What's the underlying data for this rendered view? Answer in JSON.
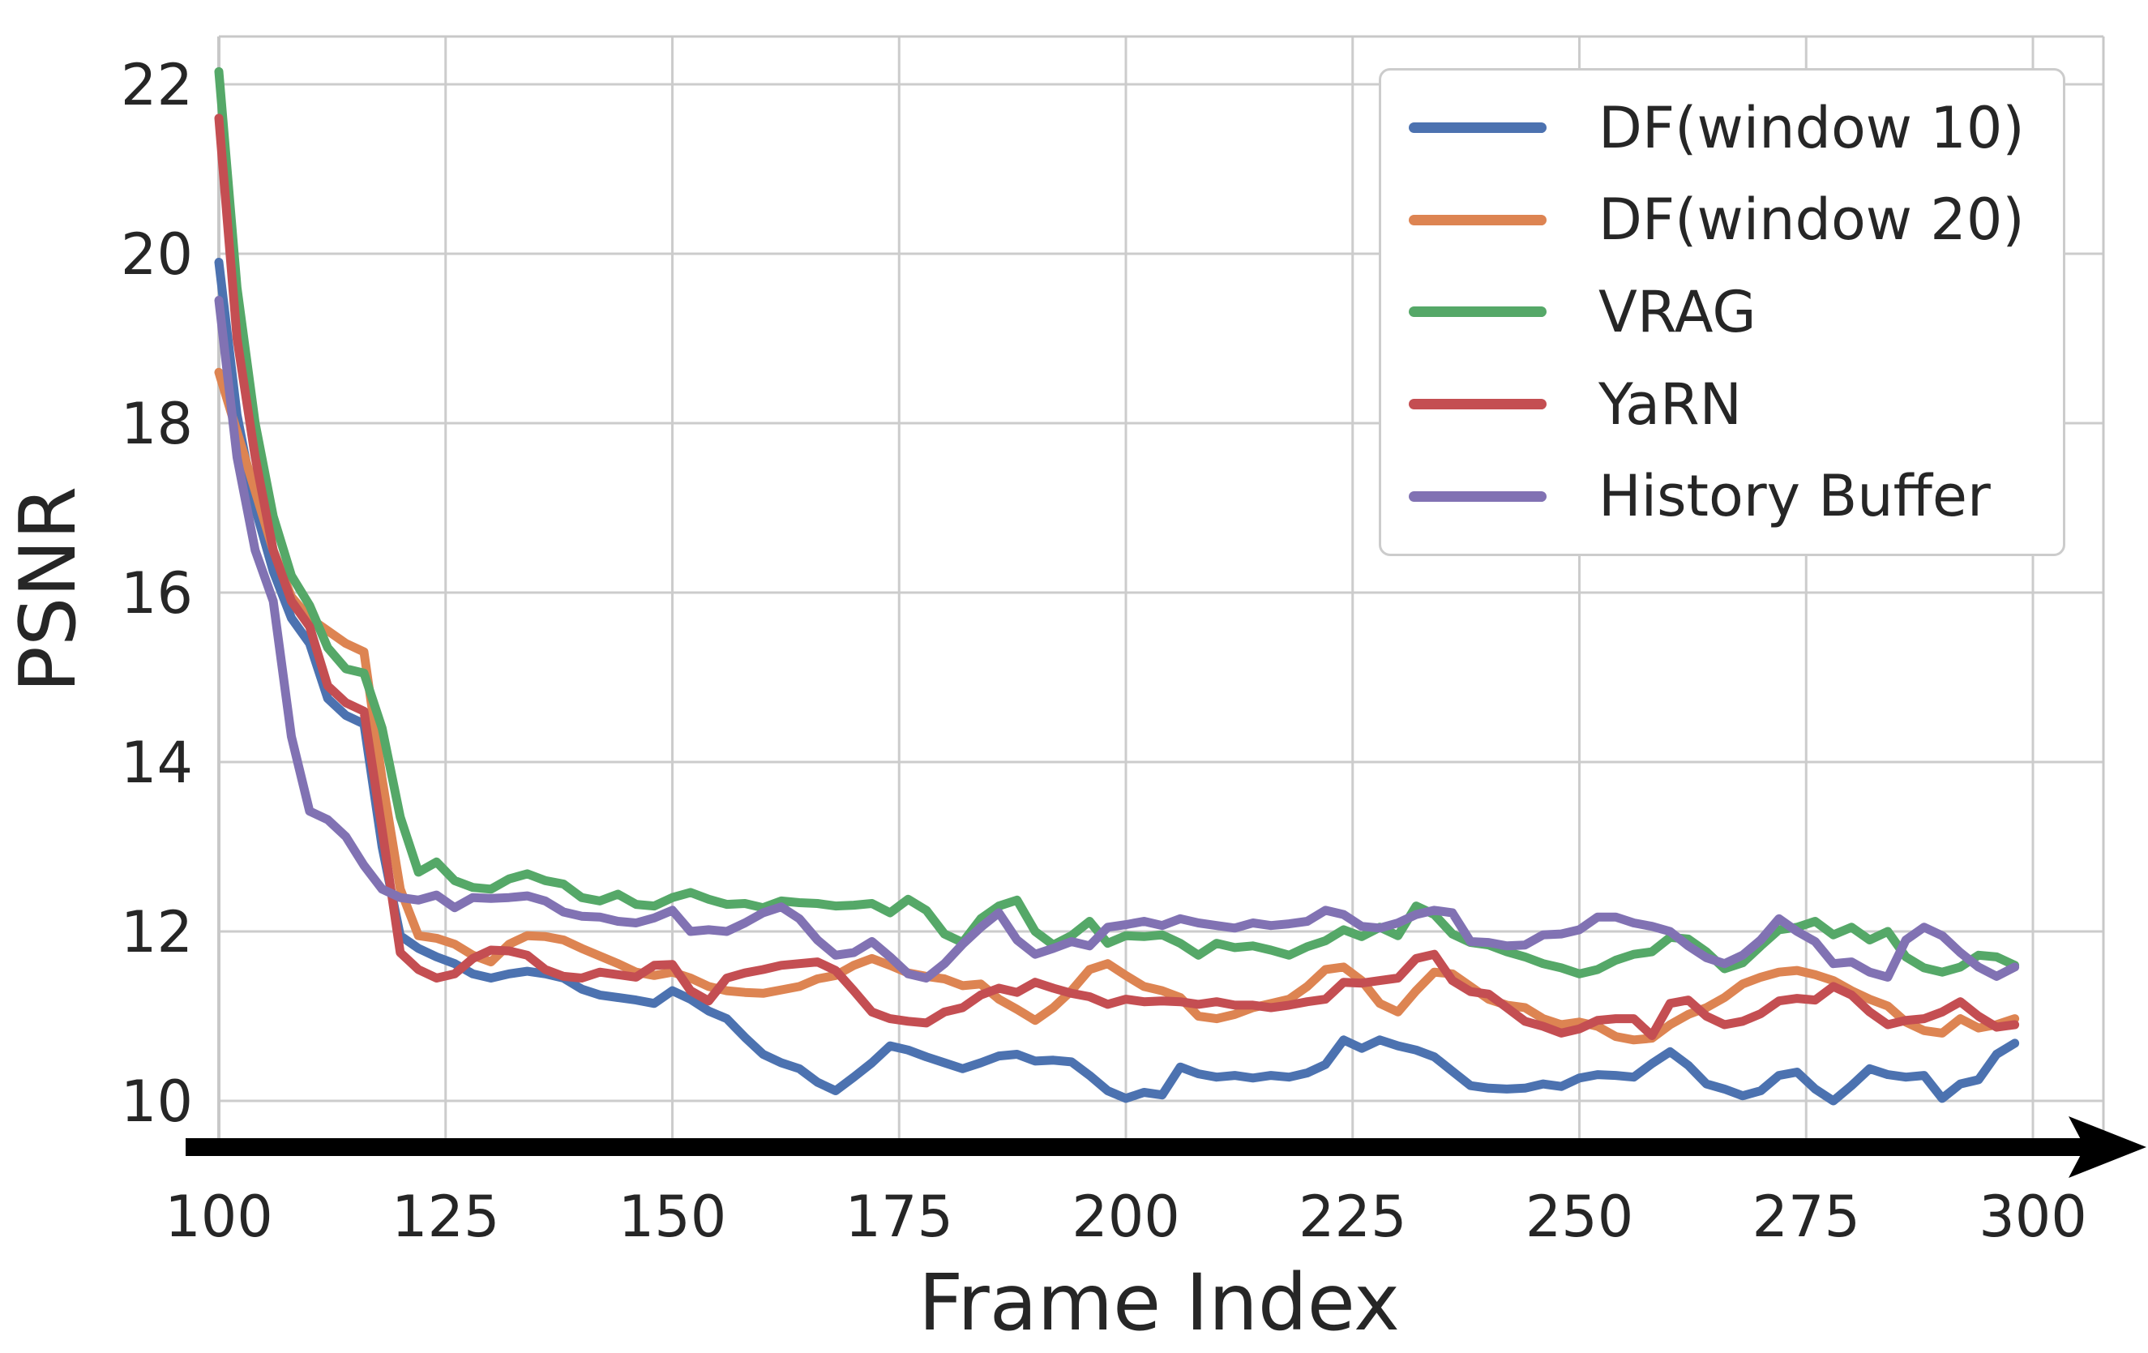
{
  "figure": {
    "background": "#ffffff"
  },
  "colors": {
    "grid": "#cccccc",
    "spine": "#c8c8c8",
    "text": "#262626",
    "axis_arrow": "#000000"
  },
  "legend": {
    "position": "upper right",
    "items": [
      "DF(window 10)",
      "DF(window 20)",
      "VRAG",
      "YaRN",
      "History Buffer"
    ]
  },
  "chart_data": {
    "type": "line",
    "title": "",
    "xlabel": "Frame Index",
    "ylabel": "PSNR",
    "x_ticks": [
      100,
      125,
      150,
      175,
      200,
      225,
      250,
      275,
      300
    ],
    "y_ticks": [
      10,
      12,
      14,
      16,
      18,
      20,
      22
    ],
    "xlim": [
      100,
      308
    ],
    "ylim": [
      9.45,
      22.55
    ],
    "grid": true,
    "legend_position": "upper right",
    "x_start": 100,
    "x_step": 2,
    "series": [
      {
        "name": "DF(window 10)",
        "color": "#4C72B0",
        "values": [
          19.9,
          18.1,
          17.0,
          16.25,
          15.7,
          15.4,
          14.75,
          14.55,
          14.45,
          13.0,
          11.95,
          11.8,
          11.7,
          11.62,
          11.5,
          11.45,
          11.5,
          11.53,
          11.5,
          11.45,
          11.32,
          11.25,
          11.22,
          11.19,
          11.15,
          11.3,
          11.2,
          11.06,
          10.97,
          10.75,
          10.55,
          10.45,
          10.38,
          10.22,
          10.12,
          10.28,
          10.45,
          10.65,
          10.6,
          10.52,
          10.45,
          10.38,
          10.45,
          10.53,
          10.55,
          10.47,
          10.48,
          10.46,
          10.3,
          10.12,
          10.03,
          10.1,
          10.07,
          10.4,
          10.32,
          10.28,
          10.3,
          10.27,
          10.3,
          10.28,
          10.33,
          10.43,
          10.72,
          10.62,
          10.72,
          10.65,
          10.6,
          10.52,
          10.35,
          10.18,
          10.15,
          10.14,
          10.15,
          10.2,
          10.17,
          10.27,
          10.31,
          10.3,
          10.28,
          10.44,
          10.58,
          10.42,
          10.2,
          10.14,
          10.06,
          10.12,
          10.3,
          10.34,
          10.14,
          10.0,
          10.18,
          10.38,
          10.31,
          10.28,
          10.3,
          10.03,
          10.2,
          10.25,
          10.55,
          10.68
        ]
      },
      {
        "name": "DF(window 20)",
        "color": "#DD8452",
        "values": [
          18.6,
          17.9,
          17.2,
          16.5,
          15.95,
          15.7,
          15.55,
          15.4,
          15.3,
          13.8,
          12.5,
          11.95,
          11.92,
          11.85,
          11.72,
          11.64,
          11.85,
          11.95,
          11.94,
          11.9,
          11.8,
          11.71,
          11.62,
          11.52,
          11.48,
          11.52,
          11.45,
          11.35,
          11.3,
          11.28,
          11.27,
          11.31,
          11.35,
          11.44,
          11.48,
          11.6,
          11.68,
          11.6,
          11.51,
          11.47,
          11.44,
          11.36,
          11.38,
          11.2,
          11.08,
          10.95,
          11.1,
          11.3,
          11.55,
          11.62,
          11.48,
          11.35,
          11.3,
          11.22,
          11.0,
          10.97,
          11.02,
          11.1,
          11.15,
          11.2,
          11.35,
          11.55,
          11.58,
          11.42,
          11.15,
          11.05,
          11.3,
          11.52,
          11.5,
          11.35,
          11.2,
          11.13,
          11.1,
          10.97,
          10.9,
          10.93,
          10.88,
          10.76,
          10.72,
          10.74,
          10.9,
          11.02,
          11.1,
          11.22,
          11.38,
          11.46,
          11.52,
          11.54,
          11.49,
          11.42,
          11.3,
          11.2,
          11.12,
          10.93,
          10.83,
          10.8,
          10.97,
          10.86,
          10.9,
          10.97
        ]
      },
      {
        "name": "VRAG",
        "color": "#55A868",
        "values": [
          22.15,
          19.6,
          18.0,
          16.9,
          16.2,
          15.85,
          15.35,
          15.1,
          15.05,
          14.4,
          13.35,
          12.7,
          12.82,
          12.6,
          12.52,
          12.5,
          12.62,
          12.68,
          12.6,
          12.56,
          12.4,
          12.36,
          12.44,
          12.32,
          12.3,
          12.4,
          12.46,
          12.38,
          12.32,
          12.33,
          12.28,
          12.36,
          12.34,
          12.33,
          12.3,
          12.31,
          12.33,
          12.22,
          12.38,
          12.25,
          11.97,
          11.87,
          12.15,
          12.3,
          12.37,
          12.0,
          11.84,
          11.95,
          12.12,
          11.86,
          11.95,
          11.94,
          11.96,
          11.86,
          11.72,
          11.86,
          11.81,
          11.83,
          11.78,
          11.72,
          11.82,
          11.89,
          12.02,
          11.94,
          12.05,
          11.95,
          12.3,
          12.2,
          11.97,
          11.87,
          11.84,
          11.76,
          11.7,
          11.62,
          11.57,
          11.5,
          11.55,
          11.66,
          11.73,
          11.76,
          11.93,
          11.91,
          11.76,
          11.56,
          11.63,
          11.83,
          12.02,
          12.05,
          12.12,
          11.96,
          12.05,
          11.9,
          12.0,
          11.7,
          11.57,
          11.52,
          11.58,
          11.72,
          11.7,
          11.6
        ]
      },
      {
        "name": "YaRN",
        "color": "#C44E52",
        "values": [
          21.6,
          19.0,
          17.6,
          16.5,
          15.9,
          15.6,
          14.9,
          14.7,
          14.6,
          13.2,
          11.75,
          11.55,
          11.45,
          11.5,
          11.68,
          11.78,
          11.77,
          11.72,
          11.55,
          11.47,
          11.45,
          11.52,
          11.49,
          11.46,
          11.6,
          11.61,
          11.3,
          11.18,
          11.45,
          11.51,
          11.55,
          11.6,
          11.62,
          11.64,
          11.54,
          11.3,
          11.05,
          10.97,
          10.94,
          10.92,
          11.05,
          11.1,
          11.25,
          11.33,
          11.28,
          11.4,
          11.33,
          11.27,
          11.23,
          11.14,
          11.2,
          11.17,
          11.18,
          11.17,
          11.14,
          11.17,
          11.13,
          11.13,
          11.1,
          11.13,
          11.17,
          11.2,
          11.4,
          11.39,
          11.42,
          11.45,
          11.68,
          11.73,
          11.42,
          11.29,
          11.26,
          11.1,
          10.94,
          10.88,
          10.8,
          10.85,
          10.95,
          10.97,
          10.97,
          10.77,
          11.15,
          11.19,
          11.0,
          10.9,
          10.94,
          11.03,
          11.18,
          11.21,
          11.19,
          11.35,
          11.25,
          11.05,
          10.9,
          10.95,
          10.97,
          11.05,
          11.17,
          11.0,
          10.87,
          10.9
        ]
      },
      {
        "name": "History Buffer",
        "color": "#8172B3",
        "values": [
          19.45,
          17.6,
          16.5,
          15.9,
          14.3,
          13.42,
          13.32,
          13.12,
          12.78,
          12.5,
          12.4,
          12.37,
          12.43,
          12.28,
          12.4,
          12.39,
          12.4,
          12.42,
          12.36,
          12.23,
          12.18,
          12.17,
          12.12,
          12.1,
          12.16,
          12.25,
          12.0,
          12.02,
          12.0,
          12.1,
          12.22,
          12.29,
          12.15,
          11.9,
          11.72,
          11.75,
          11.88,
          11.7,
          11.5,
          11.45,
          11.62,
          11.85,
          12.05,
          12.22,
          11.9,
          11.73,
          11.8,
          11.88,
          11.83,
          12.05,
          12.08,
          12.12,
          12.07,
          12.15,
          12.1,
          12.07,
          12.04,
          12.1,
          12.07,
          12.09,
          12.12,
          12.25,
          12.2,
          12.06,
          12.04,
          12.1,
          12.2,
          12.25,
          12.22,
          11.88,
          11.87,
          11.83,
          11.84,
          11.96,
          11.97,
          12.02,
          12.17,
          12.17,
          12.1,
          12.06,
          12.0,
          11.83,
          11.69,
          11.62,
          11.72,
          11.9,
          12.15,
          12.0,
          11.88,
          11.62,
          11.64,
          11.52,
          11.46,
          11.9,
          12.05,
          11.95,
          11.75,
          11.58,
          11.47,
          11.58
        ]
      }
    ]
  }
}
